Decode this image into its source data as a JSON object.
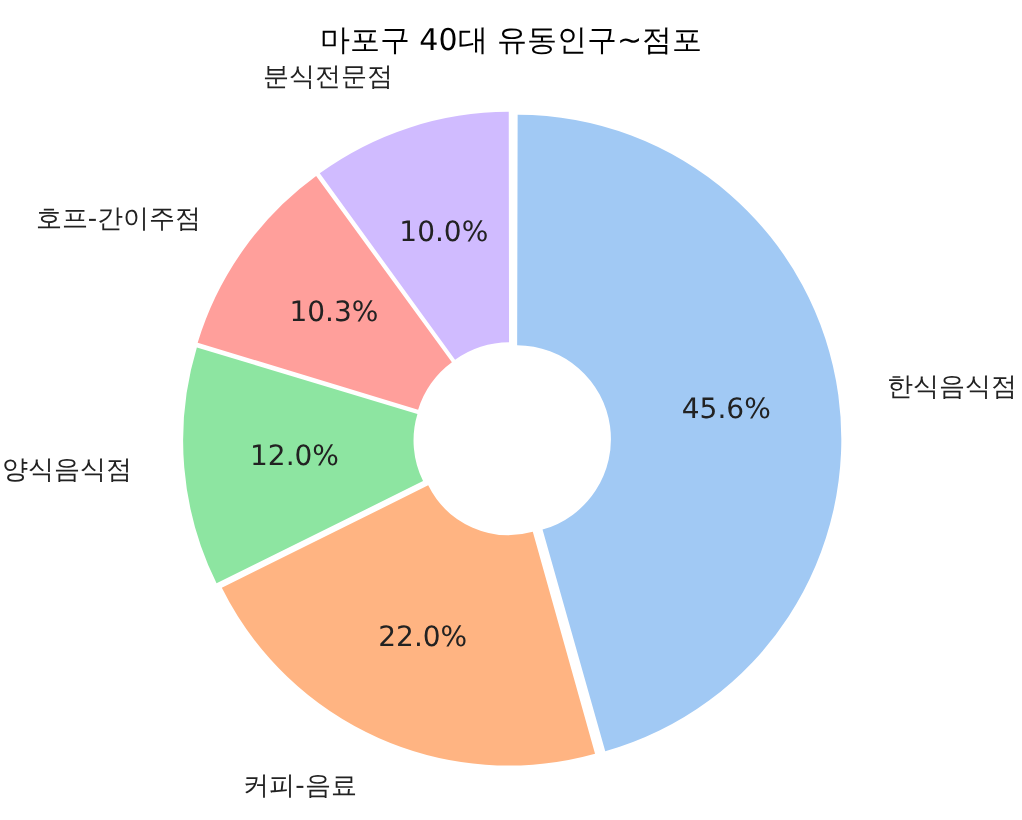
{
  "chart_data": {
    "type": "donut",
    "title": "마포구 40대 유동인구~점포",
    "categories": [
      "한식음식점",
      "커피-음료",
      "양식음식점",
      "호프-간이주점",
      "분식전문점"
    ],
    "values": [
      45.6,
      22.0,
      12.0,
      10.3,
      10.0
    ],
    "colors": [
      "#a1c9f4",
      "#ffb482",
      "#8de5a1",
      "#ff9f9b",
      "#d0bbff"
    ],
    "value_labels": [
      "45.6%",
      "22.0%",
      "12.0%",
      "10.3%",
      "10.0%"
    ],
    "legend": false
  }
}
